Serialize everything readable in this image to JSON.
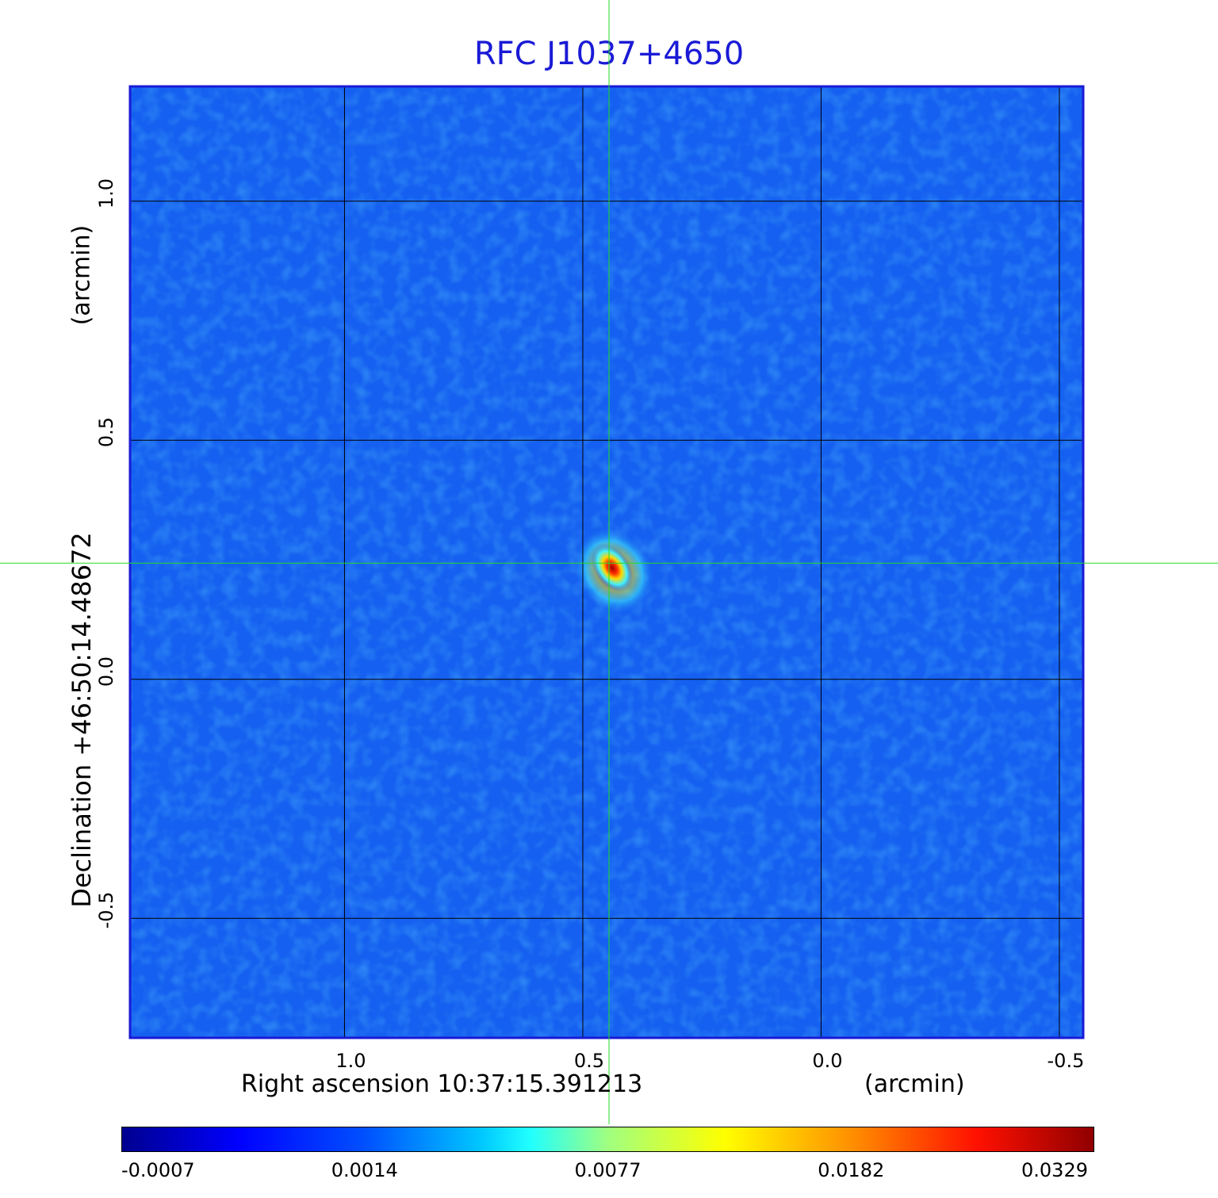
{
  "chart_data": {
    "type": "heatmap",
    "title": "RFC J1037+4650",
    "xlabel": "Right ascension  10:37:15.391213",
    "xlabel_unit": "(arcmin)",
    "ylabel": "Declination  +46:50:14.48672",
    "ylabel_unit": "(arcmin)",
    "xlim": [
      1.45,
      -0.55
    ],
    "ylim": [
      -0.75,
      1.24
    ],
    "x_ticks": [
      1.0,
      0.5,
      0.0,
      -0.5
    ],
    "x_tick_labels": [
      "1.0",
      "0.5",
      "0.0",
      "-0.5"
    ],
    "y_ticks": [
      1.0,
      0.5,
      0.0,
      -0.5
    ],
    "y_tick_labels": [
      "1.0",
      "0.5",
      "0.0",
      "-0.5"
    ],
    "grid": true,
    "crosshair": {
      "x": 0.445,
      "y": 0.243,
      "color": "#22dd22"
    },
    "source_peak": {
      "x": 0.445,
      "y": 0.243,
      "value": 0.0329
    },
    "colormap": "jet",
    "colorbar_ticks": [
      "-0.0007",
      "0.0014",
      "0.0077",
      "0.0182",
      "0.0329"
    ],
    "background_color": "#1560f0"
  }
}
